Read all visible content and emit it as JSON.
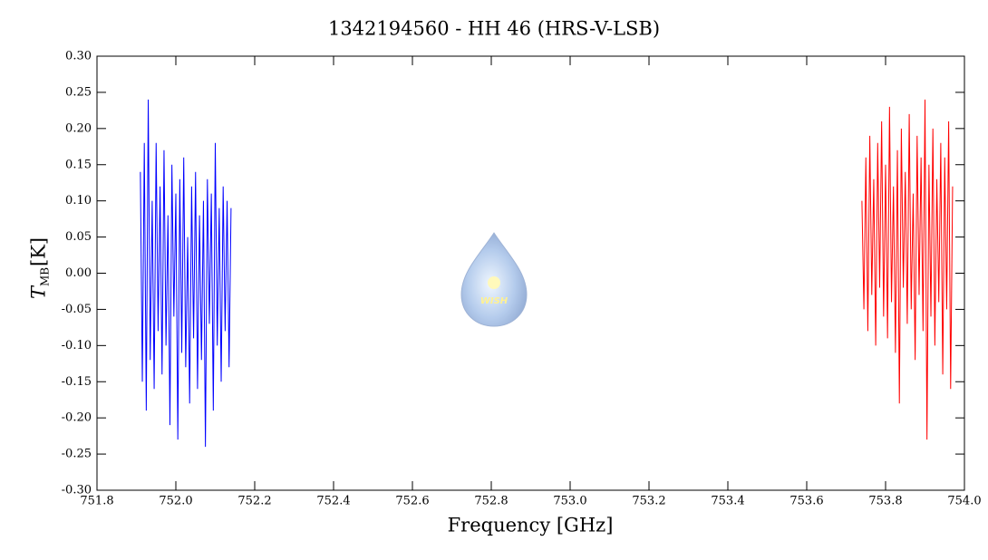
{
  "chart_data": {
    "type": "line",
    "title": "1342194560 - HH 46 (HRS-V-LSB)",
    "xlabel": "Frequency [GHz]",
    "ylabel_symbol": "T",
    "ylabel_subscript": "MB",
    "ylabel_unit": "[K]",
    "logo_text": "WISH",
    "xlim": [
      751.8,
      754.0
    ],
    "ylim": [
      -0.3,
      0.3
    ],
    "xticks": [
      751.8,
      {
        "value": 752.0,
        "label": "752.0"
      },
      752.2,
      752.4,
      752.6,
      752.8,
      {
        "value": 753.0,
        "label": "753.0"
      },
      753.2,
      753.4,
      753.6,
      753.8,
      {
        "value": 754.0,
        "label": "754.0"
      }
    ],
    "yticks": [
      {
        "value": -0.3,
        "label": "-0.30"
      },
      {
        "value": -0.25,
        "label": "-0.25"
      },
      {
        "value": -0.2,
        "label": "-0.20"
      },
      {
        "value": -0.15,
        "label": "-0.15"
      },
      {
        "value": -0.1,
        "label": "-0.10"
      },
      {
        "value": -0.05,
        "label": "-0.05"
      },
      {
        "value": 0,
        "label": "0.00"
      },
      {
        "value": 0.05,
        "label": "0.05"
      },
      {
        "value": 0.1,
        "label": "0.10"
      },
      {
        "value": 0.15,
        "label": "0.15"
      },
      {
        "value": 0.2,
        "label": "0.20"
      },
      {
        "value": 0.25,
        "label": "0.25"
      },
      {
        "value": 0.3,
        "label": "0.30"
      }
    ],
    "series": [
      {
        "color": "#0000ff",
        "x": [
          751.91,
          751.915,
          751.92,
          751.925,
          751.93,
          751.935,
          751.94,
          751.945,
          751.95,
          751.955,
          751.96,
          751.965,
          751.97,
          751.975,
          751.98,
          751.985,
          751.99,
          751.995,
          752.0,
          752.005,
          752.01,
          752.015,
          752.02,
          752.025,
          752.03,
          752.035,
          752.04,
          752.045,
          752.05,
          752.055,
          752.06,
          752.065,
          752.07,
          752.075,
          752.08,
          752.085,
          752.09,
          752.095,
          752.1,
          752.105,
          752.11,
          752.115,
          752.12,
          752.125,
          752.13,
          752.135,
          752.14
        ],
        "values": [
          0.14,
          -0.15,
          0.18,
          -0.19,
          0.24,
          -0.12,
          0.1,
          -0.16,
          0.18,
          -0.08,
          0.12,
          -0.14,
          0.17,
          -0.1,
          0.08,
          -0.21,
          0.15,
          -0.06,
          0.11,
          -0.23,
          0.13,
          -0.11,
          0.16,
          -0.13,
          0.05,
          -0.18,
          0.12,
          -0.09,
          0.14,
          -0.16,
          0.08,
          -0.12,
          0.1,
          -0.24,
          0.13,
          -0.07,
          0.11,
          -0.19,
          0.18,
          -0.1,
          0.09,
          -0.15,
          0.12,
          -0.08,
          0.1,
          -0.13,
          0.09
        ]
      },
      {
        "color": "#ff0000",
        "x": [
          753.74,
          753.745,
          753.75,
          753.755,
          753.76,
          753.765,
          753.77,
          753.775,
          753.78,
          753.785,
          753.79,
          753.795,
          753.8,
          753.805,
          753.81,
          753.815,
          753.82,
          753.825,
          753.83,
          753.835,
          753.84,
          753.845,
          753.85,
          753.855,
          753.86,
          753.865,
          753.87,
          753.875,
          753.88,
          753.885,
          753.89,
          753.895,
          753.9,
          753.905,
          753.91,
          753.915,
          753.92,
          753.925,
          753.93,
          753.935,
          753.94,
          753.945,
          753.95,
          753.955,
          753.96,
          753.965,
          753.97
        ],
        "values": [
          0.1,
          -0.05,
          0.16,
          -0.08,
          0.19,
          -0.03,
          0.13,
          -0.1,
          0.18,
          -0.02,
          0.21,
          -0.06,
          0.15,
          -0.09,
          0.23,
          -0.04,
          0.12,
          -0.11,
          0.17,
          -0.18,
          0.2,
          -0.02,
          0.14,
          -0.07,
          0.22,
          -0.05,
          0.11,
          -0.12,
          0.19,
          -0.03,
          0.16,
          -0.08,
          0.24,
          -0.23,
          0.15,
          -0.06,
          0.2,
          -0.1,
          0.13,
          -0.04,
          0.18,
          -0.14,
          0.16,
          -0.05,
          0.21,
          -0.16,
          0.12
        ]
      }
    ]
  }
}
